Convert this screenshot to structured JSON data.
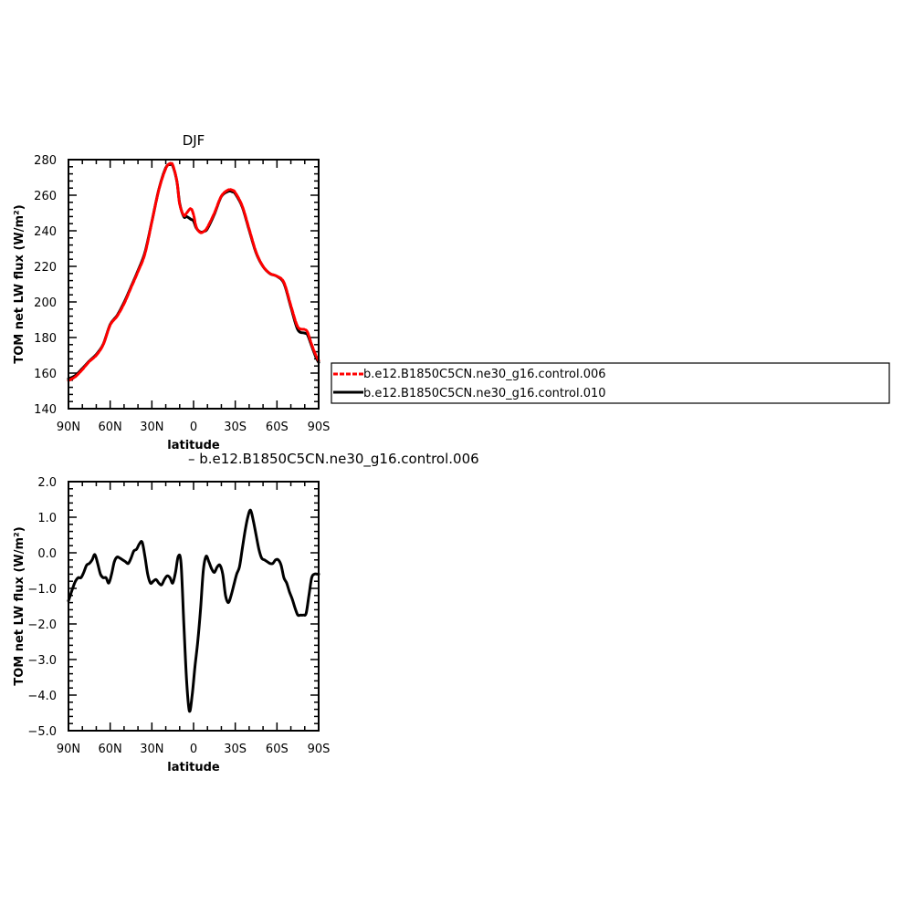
{
  "colors": {
    "case_test": "#ff0000",
    "case_ctrl": "#000000",
    "axis": "#000000"
  },
  "chart_data": [
    {
      "type": "line",
      "title": "DJF",
      "xlabel": "latitude",
      "ylabel": "TOM net LW flux (W/m²)",
      "xlim": [
        -90,
        90
      ],
      "ylim": [
        140,
        280
      ],
      "xticks": [
        -90,
        -60,
        -30,
        0,
        30,
        60,
        90
      ],
      "xtick_labels": [
        "90N",
        "60N",
        "30N",
        "0",
        "30S",
        "60S",
        "90S"
      ],
      "yticks": [
        140,
        160,
        180,
        200,
        220,
        240,
        260,
        280
      ],
      "ytick_labels": [
        "140",
        "160",
        "180",
        "200",
        "220",
        "240",
        "260",
        "280"
      ],
      "legend_placement": "right",
      "series": [
        {
          "name": "b.e12.B1850C5CN.ne30_g16.control.006",
          "style": "dashed",
          "color": "#ff0000",
          "x": [
            -90,
            -85,
            -80,
            -75,
            -70,
            -65,
            -60,
            -55,
            -50,
            -45,
            -40,
            -35,
            -30,
            -25,
            -20,
            -17,
            -15,
            -12,
            -10,
            -7,
            -5,
            -2,
            0,
            2,
            5,
            8,
            10,
            15,
            20,
            25,
            28,
            30,
            35,
            40,
            45,
            50,
            55,
            60,
            65,
            70,
            75,
            80,
            82,
            85,
            88,
            90
          ],
          "y": [
            155.8,
            158,
            162,
            166.5,
            170,
            176,
            187,
            192,
            199,
            208,
            217,
            227,
            245,
            263,
            275,
            277.8,
            277,
            268,
            255,
            248.6,
            250,
            252.5,
            249,
            242,
            239,
            240,
            242,
            250,
            259.5,
            263,
            262.8,
            261.5,
            254,
            241,
            228,
            220,
            216,
            214.5,
            211,
            198,
            186,
            184.5,
            183,
            176,
            170,
            167
          ]
        },
        {
          "name": "b.e12.B1850C5CN.ne30_g16.control.010",
          "style": "solid",
          "color": "#000000",
          "x": [
            -90,
            -85,
            -80,
            -75,
            -70,
            -65,
            -60,
            -55,
            -50,
            -45,
            -40,
            -35,
            -30,
            -25,
            -20,
            -17,
            -15,
            -12,
            -10,
            -7,
            -5,
            -2,
            0,
            2,
            5,
            8,
            10,
            15,
            20,
            25,
            28,
            30,
            35,
            40,
            45,
            50,
            55,
            60,
            65,
            70,
            75,
            80,
            82,
            85,
            88,
            90
          ],
          "y": [
            156.8,
            158.7,
            162.6,
            166.8,
            170.5,
            176.2,
            187.3,
            192.4,
            199.7,
            208.5,
            217.6,
            227.8,
            245.2,
            263.2,
            275.4,
            277.2,
            276.5,
            267.8,
            255.5,
            247.9,
            248,
            246.5,
            245.5,
            241.5,
            239.3,
            239.8,
            241.2,
            249.4,
            259.3,
            262.2,
            261.9,
            260.8,
            253.5,
            240.4,
            227.6,
            219.9,
            215.9,
            214.4,
            210.5,
            197.2,
            184.4,
            182.5,
            181.5,
            175.2,
            169,
            166
          ]
        }
      ]
    },
    {
      "type": "line",
      "title": "– b.e12.B1850C5CN.ne30_g16.control.006",
      "xlabel": "latitude",
      "ylabel": "TOM net LW flux (W/m²)",
      "xlim": [
        -90,
        90
      ],
      "ylim": [
        -5,
        2
      ],
      "xticks": [
        -90,
        -60,
        -30,
        0,
        30,
        60,
        90
      ],
      "xtick_labels": [
        "90N",
        "60N",
        "30N",
        "0",
        "30S",
        "60S",
        "90S"
      ],
      "yticks": [
        -5,
        -4,
        -3,
        -2,
        -1,
        0,
        1,
        2
      ],
      "ytick_labels": [
        "−5.0",
        "−4.0",
        "−3.0",
        "−2.0",
        "−1.0",
        "0.0",
        "1.0",
        "2.0"
      ],
      "series": [
        {
          "name": "",
          "style": "solid",
          "color": "#000000",
          "x": [
            -90,
            -87,
            -85,
            -83,
            -81,
            -79,
            -77,
            -75,
            -73,
            -71,
            -69,
            -67,
            -65,
            -63,
            -61,
            -59,
            -57,
            -55,
            -53,
            -51,
            -49,
            -47,
            -45,
            -43,
            -41,
            -39,
            -37,
            -35,
            -33,
            -31,
            -29,
            -27,
            -25,
            -23,
            -21,
            -19,
            -17,
            -15,
            -13,
            -11,
            -9,
            -7,
            -5,
            -3,
            -1,
            1,
            3,
            5,
            7,
            9,
            11,
            13,
            15,
            17,
            19,
            21,
            23,
            25,
            27,
            29,
            31,
            33,
            35,
            37,
            39,
            41,
            43,
            45,
            47,
            49,
            51,
            53,
            55,
            57,
            59,
            61,
            63,
            65,
            67,
            69,
            71,
            73,
            75,
            77,
            79,
            81,
            83,
            85,
            87,
            89,
            90
          ],
          "y": [
            -1.35,
            -1.0,
            -0.8,
            -0.7,
            -0.7,
            -0.55,
            -0.35,
            -0.3,
            -0.2,
            -0.05,
            -0.3,
            -0.6,
            -0.7,
            -0.7,
            -0.85,
            -0.6,
            -0.25,
            -0.12,
            -0.15,
            -0.2,
            -0.25,
            -0.3,
            -0.15,
            0.05,
            0.1,
            0.25,
            0.3,
            -0.1,
            -0.6,
            -0.85,
            -0.8,
            -0.75,
            -0.85,
            -0.9,
            -0.75,
            -0.65,
            -0.7,
            -0.85,
            -0.55,
            -0.1,
            -0.3,
            -2.0,
            -3.6,
            -4.45,
            -4.0,
            -3.2,
            -2.5,
            -1.6,
            -0.5,
            -0.1,
            -0.25,
            -0.45,
            -0.55,
            -0.4,
            -0.35,
            -0.6,
            -1.2,
            -1.4,
            -1.2,
            -0.9,
            -0.6,
            -0.4,
            0.1,
            0.6,
            1.0,
            1.2,
            0.9,
            0.5,
            0.1,
            -0.15,
            -0.2,
            -0.25,
            -0.3,
            -0.3,
            -0.2,
            -0.2,
            -0.35,
            -0.7,
            -0.85,
            -1.1,
            -1.3,
            -1.55,
            -1.75,
            -1.75,
            -1.75,
            -1.7,
            -1.2,
            -0.7,
            -0.6,
            -0.6,
            -0.6
          ]
        }
      ]
    }
  ]
}
